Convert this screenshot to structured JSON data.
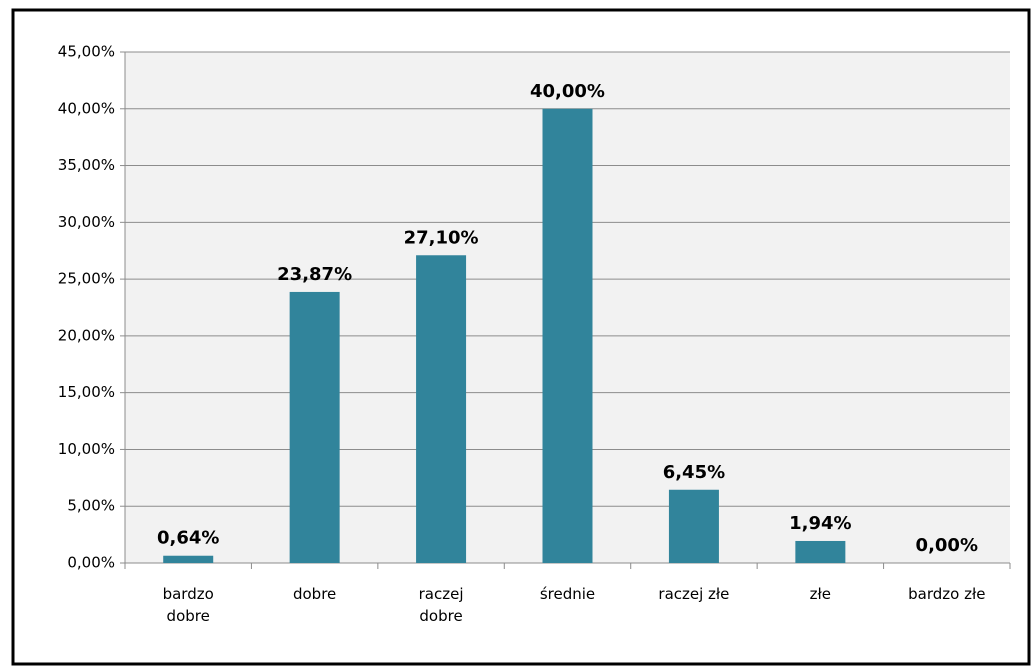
{
  "chart_data": {
    "type": "bar",
    "categories": [
      "bardzo dobre",
      "dobre",
      "raczej dobre",
      "średnie",
      "raczej złe",
      "złe",
      "bardzo złe"
    ],
    "values": [
      0.64,
      23.87,
      27.1,
      40.0,
      6.45,
      1.94,
      0.0
    ],
    "value_labels": [
      "0,64%",
      "23,87%",
      "27,10%",
      "40,00%",
      "6,45%",
      "1,94%",
      "0,00%"
    ],
    "color": "#31849b",
    "ylim": [
      0,
      45
    ],
    "yticks": [
      {
        "value": 0,
        "label": "0,00%"
      },
      {
        "value": 5,
        "label": "5,00%"
      },
      {
        "value": 10,
        "label": "10,00%"
      },
      {
        "value": 15,
        "label": "15,00%"
      },
      {
        "value": 20,
        "label": "20,00%"
      },
      {
        "value": 25,
        "label": "25,00%"
      },
      {
        "value": 30,
        "label": "30,00%"
      },
      {
        "value": 35,
        "label": "35,00%"
      },
      {
        "value": 40,
        "label": "40,00%"
      },
      {
        "value": 45,
        "label": "45,00%"
      }
    ],
    "grid": true
  }
}
